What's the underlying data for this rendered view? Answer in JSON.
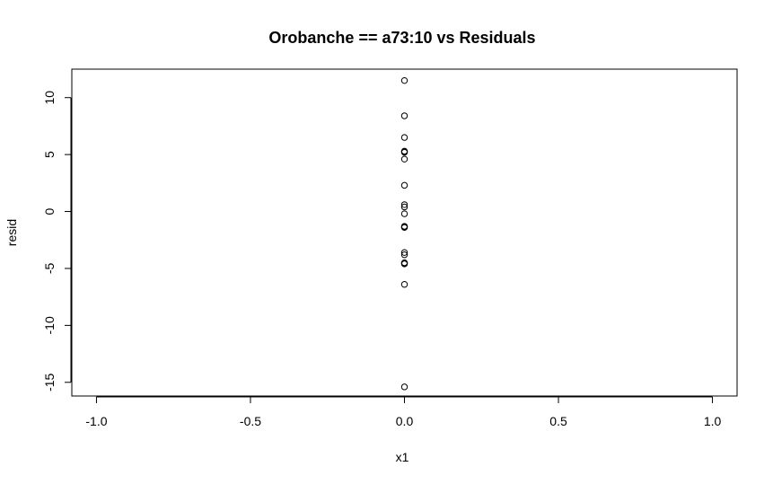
{
  "chart_data": {
    "type": "scatter",
    "title": "Orobanche == a73:10 vs Residuals",
    "xlabel": "x1",
    "ylabel": "resid",
    "xlim": [
      -1.08,
      1.08
    ],
    "ylim": [
      -16.2,
      12.5
    ],
    "x_ticks": [
      -1.0,
      -0.5,
      0.0,
      0.5,
      1.0
    ],
    "x_tick_labels": [
      "-1.0",
      "-0.5",
      "0.0",
      "0.5",
      "1.0"
    ],
    "y_ticks": [
      -15,
      -10,
      -5,
      0,
      5,
      10
    ],
    "y_tick_labels": [
      "-15",
      "-10",
      "-5",
      "0",
      "5",
      "10"
    ],
    "grid": false,
    "legend": "none",
    "marker": "open-circle",
    "color": "#000000",
    "x": [
      0,
      0,
      0,
      0,
      0,
      0,
      0,
      0,
      0,
      0,
      0,
      0,
      0,
      0,
      0,
      0,
      0,
      0,
      0,
      0,
      0
    ],
    "y": [
      11.5,
      8.4,
      6.5,
      5.3,
      5.2,
      4.6,
      2.3,
      0.6,
      0.4,
      -0.2,
      -1.3,
      -1.4,
      -3.6,
      -3.8,
      -4.5,
      -4.6,
      -6.4,
      -15.4,
      5.25,
      -1.35,
      -4.55
    ]
  }
}
